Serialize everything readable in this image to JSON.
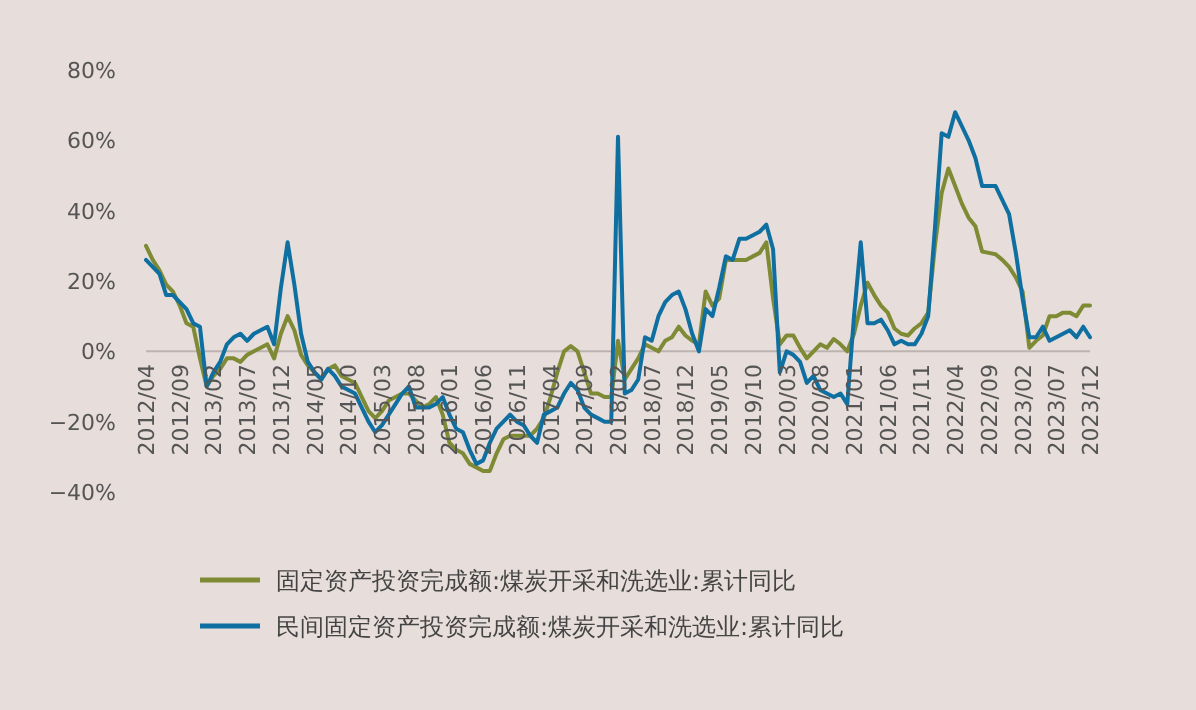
{
  "chart_data": {
    "type": "line",
    "categories": [
      "2012/04",
      null,
      null,
      null,
      null,
      "2012/09",
      null,
      null,
      null,
      null,
      "2013/02",
      null,
      null,
      null,
      null,
      "2013/07",
      null,
      null,
      null,
      null,
      "2013/12",
      null,
      null,
      null,
      null,
      "2014/05",
      null,
      null,
      null,
      null,
      "2014/10",
      null,
      null,
      null,
      null,
      "2015/03",
      null,
      null,
      null,
      null,
      "2015/08",
      null,
      null,
      null,
      null,
      "2016/01",
      null,
      null,
      null,
      null,
      "2016/06",
      null,
      null,
      null,
      null,
      "2016/11",
      null,
      null,
      null,
      null,
      "2017/04",
      null,
      null,
      null,
      null,
      "2017/09",
      null,
      null,
      null,
      null,
      "2018/02",
      null,
      null,
      null,
      null,
      "2018/07",
      null,
      null,
      null,
      null,
      "2018/12",
      null,
      null,
      null,
      null,
      "2019/05",
      null,
      null,
      null,
      null,
      "2019/10",
      null,
      null,
      null,
      null,
      "2020/03",
      null,
      null,
      null,
      null,
      "2020/08",
      null,
      null,
      null,
      null,
      "2021/01",
      null,
      null,
      null,
      null,
      "2021/06",
      null,
      null,
      null,
      null,
      "2021/11",
      null,
      null,
      null,
      null,
      "2022/04",
      null,
      null,
      null,
      null,
      "2022/09",
      null,
      null,
      null,
      null,
      "2023/02",
      null,
      null,
      null,
      null,
      "2023/07",
      null,
      null,
      null,
      null,
      "2023/12"
    ],
    "series": [
      {
        "name": "固定资产投资完成额:煤炭开采和洗选业:累计同比",
        "color": "#7f8a35",
        "values": [
          30,
          26,
          23,
          19,
          17,
          13,
          8,
          7,
          -2,
          -10,
          -7,
          -5,
          -2,
          -2,
          -3,
          -1,
          0,
          1,
          2,
          -2,
          5,
          10,
          6,
          -1,
          -4,
          -6,
          -8,
          -5,
          -4,
          -7,
          -8,
          -9,
          -13,
          -17,
          -19,
          -17,
          -14,
          -13,
          -12,
          -12,
          -14,
          -16,
          -15,
          -13,
          -18,
          -26,
          -28,
          -29,
          -32,
          -33,
          -34,
          -34,
          -29,
          -25,
          -24,
          -24,
          -24,
          -24,
          -22,
          -19,
          -13,
          -6,
          0,
          1.5,
          0,
          -6,
          -12,
          -12,
          -13,
          -13,
          3,
          -8,
          -5,
          -2,
          2,
          1,
          0,
          3,
          4,
          7,
          4.5,
          3,
          2,
          17,
          13,
          15,
          26,
          26,
          26,
          26,
          27,
          28,
          31,
          15,
          2,
          4.5,
          4.5,
          1,
          -2,
          0,
          2,
          1,
          3.5,
          2,
          0,
          5,
          13,
          19.5,
          16,
          13,
          11,
          6.5,
          5,
          4.5,
          6.5,
          8,
          11,
          30,
          45,
          52,
          47,
          42,
          38,
          35.6,
          28.4,
          28,
          27.6,
          26,
          24,
          21,
          17,
          1,
          3,
          4.5,
          10,
          10,
          11,
          11,
          10,
          13,
          13
        ]
      },
      {
        "name": "民间固定资产投资完成额:煤炭开采和洗选业:累计同比",
        "color": "#0e6fa0",
        "values": [
          26,
          24,
          22,
          16,
          16,
          14,
          12,
          8,
          7,
          -10,
          -6,
          -3,
          2,
          4,
          5,
          3,
          5,
          6,
          7,
          2,
          18,
          31,
          19,
          5,
          -3,
          -6,
          -8,
          -5,
          -7,
          -10,
          -11,
          -12,
          -16,
          -20,
          -23,
          -21,
          -18,
          -15,
          -12,
          -10,
          -16,
          -16,
          -16,
          -15,
          -13,
          -18,
          -22,
          -23,
          -28,
          -32,
          -31,
          -26,
          -22,
          -20,
          -18,
          -20,
          -21,
          -24,
          -26,
          -18,
          -17,
          -16,
          -12,
          -9,
          -11,
          -16,
          -18,
          -19,
          -20,
          -20,
          61,
          -12,
          -11,
          -8,
          4,
          3,
          10,
          14,
          16,
          17,
          12,
          5,
          0,
          12,
          10,
          18,
          27,
          26,
          32,
          32,
          33,
          34,
          36,
          29,
          -6,
          0,
          -1,
          -3,
          -9,
          -7,
          -11,
          -12,
          -13,
          -12,
          -15,
          10,
          31,
          8,
          8,
          9,
          6,
          2,
          3,
          2,
          2,
          5,
          10,
          35,
          62,
          61,
          68,
          64,
          60,
          55,
          47,
          47,
          47,
          43,
          39,
          28,
          15,
          4,
          4,
          7,
          3,
          4,
          5,
          6,
          4,
          7,
          4
        ]
      }
    ],
    "ylim": [
      -40,
      80
    ],
    "yticks": [
      {
        "value": -40,
        "label": "−40%"
      },
      {
        "value": -20,
        "label": "−20%"
      },
      {
        "value": 0,
        "label": "0%"
      },
      {
        "value": 20,
        "label": "20%"
      },
      {
        "value": 40,
        "label": "40%"
      },
      {
        "value": 60,
        "label": "60%"
      },
      {
        "value": 80,
        "label": "80%"
      }
    ],
    "legend": "bottom"
  }
}
